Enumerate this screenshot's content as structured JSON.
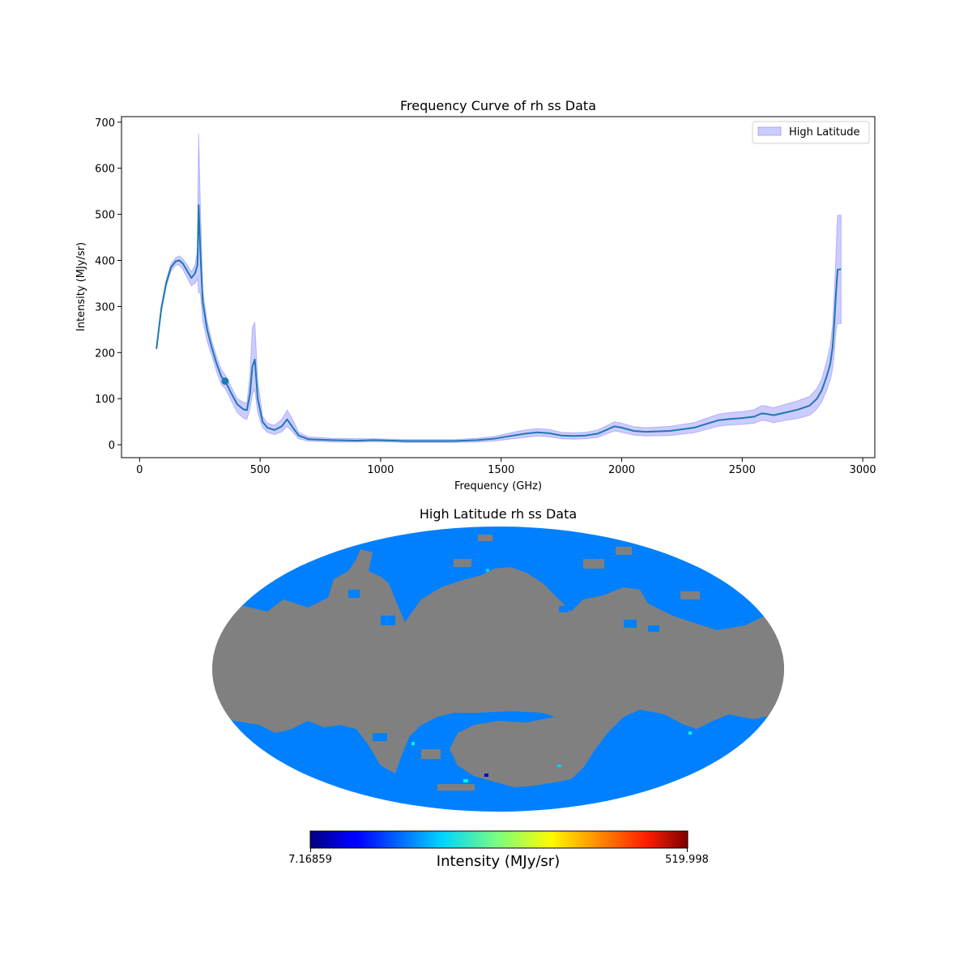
{
  "chart_data": [
    {
      "type": "line",
      "title": "Frequency Curve of rh ss Data",
      "xlabel": "Frequency (GHz)",
      "ylabel": "Intensity (MJy/sr)",
      "xlim": [
        -75,
        3050
      ],
      "ylim": [
        -28,
        712
      ],
      "xticks": [
        0,
        500,
        1000,
        1500,
        2000,
        2500,
        3000
      ],
      "yticks": [
        0,
        100,
        200,
        300,
        400,
        500,
        600,
        700
      ],
      "grid": false,
      "legend": {
        "position": "top-right",
        "entries": [
          {
            "label": "High Latitude",
            "color": "#8080ff"
          }
        ]
      },
      "series": [
        {
          "name": "High Latitude mean",
          "color": "#1f77b4",
          "points": [
            [
              70,
              208
            ],
            [
              90,
              295
            ],
            [
              110,
              350
            ],
            [
              130,
              385
            ],
            [
              150,
              398
            ],
            [
              165,
              400
            ],
            [
              180,
              393
            ],
            [
              200,
              375
            ],
            [
              215,
              362
            ],
            [
              230,
              372
            ],
            [
              240,
              390
            ],
            [
              245,
              520
            ],
            [
              252,
              420
            ],
            [
              262,
              310
            ],
            [
              280,
              250
            ],
            [
              300,
              210
            ],
            [
              320,
              175
            ],
            [
              340,
              147
            ],
            [
              355,
              138
            ],
            [
              380,
              112
            ],
            [
              405,
              88
            ],
            [
              430,
              77
            ],
            [
              445,
              75
            ],
            [
              458,
              110
            ],
            [
              468,
              170
            ],
            [
              478,
              185
            ],
            [
              490,
              100
            ],
            [
              510,
              50
            ],
            [
              530,
              37
            ],
            [
              560,
              32
            ],
            [
              590,
              40
            ],
            [
              612,
              55
            ],
            [
              635,
              38
            ],
            [
              660,
              20
            ],
            [
              700,
              12
            ],
            [
              800,
              10
            ],
            [
              900,
              9
            ],
            [
              970,
              10
            ],
            [
              1050,
              9
            ],
            [
              1100,
              8
            ],
            [
              1300,
              8
            ],
            [
              1400,
              10
            ],
            [
              1470,
              13
            ],
            [
              1550,
              20
            ],
            [
              1600,
              24
            ],
            [
              1650,
              27
            ],
            [
              1700,
              25
            ],
            [
              1750,
              20
            ],
            [
              1800,
              19
            ],
            [
              1850,
              20
            ],
            [
              1900,
              24
            ],
            [
              1940,
              33
            ],
            [
              1970,
              40
            ],
            [
              2000,
              37
            ],
            [
              2050,
              30
            ],
            [
              2100,
              28
            ],
            [
              2200,
              30
            ],
            [
              2300,
              37
            ],
            [
              2350,
              45
            ],
            [
              2400,
              53
            ],
            [
              2450,
              56
            ],
            [
              2500,
              58
            ],
            [
              2550,
              61
            ],
            [
              2580,
              68
            ],
            [
              2600,
              67
            ],
            [
              2630,
              64
            ],
            [
              2680,
              70
            ],
            [
              2730,
              76
            ],
            [
              2780,
              85
            ],
            [
              2810,
              100
            ],
            [
              2830,
              118
            ],
            [
              2850,
              148
            ],
            [
              2865,
              175
            ],
            [
              2875,
              212
            ],
            [
              2882,
              265
            ],
            [
              2888,
              320
            ],
            [
              2893,
              360
            ],
            [
              2896,
              380
            ],
            [
              2910,
              381
            ]
          ],
          "band": [
            [
              70,
              208,
              208
            ],
            [
              90,
              287,
              300
            ],
            [
              110,
              342,
              356
            ],
            [
              130,
              377,
              392
            ],
            [
              150,
              390,
              406
            ],
            [
              165,
              390,
              410
            ],
            [
              180,
              380,
              403
            ],
            [
              200,
              360,
              388
            ],
            [
              215,
              345,
              375
            ],
            [
              230,
              350,
              390
            ],
            [
              240,
              360,
              420
            ],
            [
              245,
              330,
              675
            ],
            [
              252,
              330,
              520
            ],
            [
              262,
              270,
              335
            ],
            [
              280,
              225,
              268
            ],
            [
              300,
              192,
              225
            ],
            [
              320,
              158,
              190
            ],
            [
              340,
              130,
              162
            ],
            [
              355,
              122,
              152
            ],
            [
              380,
              96,
              126
            ],
            [
              405,
              70,
              100
            ],
            [
              430,
              58,
              92
            ],
            [
              445,
              55,
              90
            ],
            [
              458,
              78,
              150
            ],
            [
              468,
              110,
              255
            ],
            [
              478,
              120,
              265
            ],
            [
              490,
              70,
              140
            ],
            [
              510,
              38,
              62
            ],
            [
              530,
              27,
              47
            ],
            [
              560,
              22,
              42
            ],
            [
              590,
              28,
              55
            ],
            [
              612,
              40,
              75
            ],
            [
              635,
              28,
              55
            ],
            [
              660,
              13,
              27
            ],
            [
              700,
              8,
              17
            ],
            [
              800,
              6,
              14
            ],
            [
              900,
              6,
              13
            ],
            [
              970,
              7,
              13
            ],
            [
              1050,
              6,
              12
            ],
            [
              1100,
              5,
              11
            ],
            [
              1300,
              5,
              11
            ],
            [
              1400,
              6,
              14
            ],
            [
              1470,
              8,
              18
            ],
            [
              1550,
              13,
              27
            ],
            [
              1600,
              16,
              32
            ],
            [
              1650,
              19,
              35
            ],
            [
              1700,
              17,
              33
            ],
            [
              1750,
              13,
              27
            ],
            [
              1800,
              12,
              26
            ],
            [
              1850,
              13,
              27
            ],
            [
              1900,
              16,
              32
            ],
            [
              1940,
              24,
              42
            ],
            [
              1970,
              30,
              50
            ],
            [
              2000,
              27,
              47
            ],
            [
              2050,
              21,
              39
            ],
            [
              2100,
              19,
              37
            ],
            [
              2200,
              20,
              40
            ],
            [
              2300,
              26,
              48
            ],
            [
              2350,
              33,
              57
            ],
            [
              2400,
              40,
              66
            ],
            [
              2450,
              43,
              70
            ],
            [
              2500,
              44,
              72
            ],
            [
              2550,
              47,
              76
            ],
            [
              2580,
              53,
              85
            ],
            [
              2600,
              52,
              84
            ],
            [
              2630,
              48,
              80
            ],
            [
              2680,
              53,
              88
            ],
            [
              2730,
              57,
              95
            ],
            [
              2780,
              64,
              105
            ],
            [
              2810,
              78,
              122
            ],
            [
              2830,
              93,
              143
            ],
            [
              2850,
              118,
              180
            ],
            [
              2865,
              140,
              215
            ],
            [
              2875,
              165,
              260
            ],
            [
              2882,
              200,
              330
            ],
            [
              2888,
              240,
              400
            ],
            [
              2893,
              262,
              470
            ],
            [
              2896,
              263,
              498
            ],
            [
              2910,
              263,
              498
            ]
          ],
          "marker": {
            "x": 355,
            "y": 138
          }
        }
      ]
    },
    {
      "type": "heatmap",
      "projection": "mollweide",
      "title": "High Latitude rh ss Data",
      "colormap": "jet",
      "masked_color": "#808080",
      "typical_color": "#0080ff",
      "colorbar": {
        "label": "Intensity (MJy/sr)",
        "min_label": "7.16859",
        "max_label": "519.998",
        "min": 7.16859,
        "max": 519.998
      }
    }
  ]
}
